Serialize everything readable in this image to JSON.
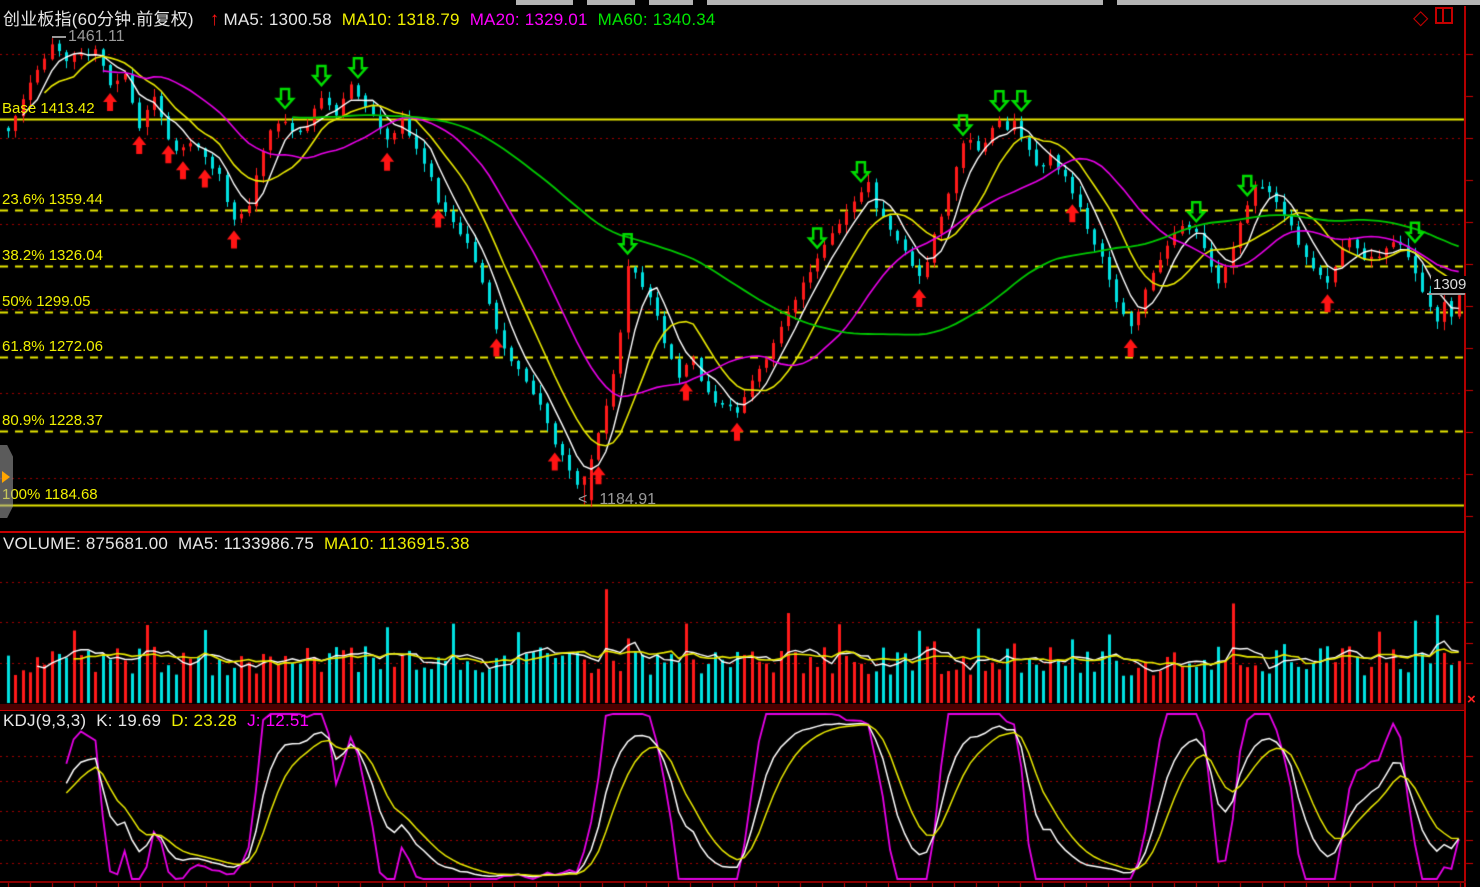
{
  "window": {
    "top_right_icons": [
      {
        "name": "diamond-icon",
        "glyph": "◇"
      },
      {
        "name": "layout-icon",
        "glyph": "split-window"
      }
    ],
    "accent_red": "#c80000",
    "background": "#000000"
  },
  "main_panel": {
    "title": "创业板指(60分钟.前复权)",
    "trend_arrow": "↑",
    "ma5": {
      "label": "MA5:",
      "value": "1300.58",
      "color": "#ffffff"
    },
    "ma10": {
      "label": "MA10:",
      "value": "1318.79",
      "color": "#f0f000"
    },
    "ma20": {
      "label": "MA20:",
      "value": "1329.01",
      "color": "#ff00ff"
    },
    "ma60": {
      "label": "MA60:",
      "value": "1340.34",
      "color": "#00e600"
    },
    "high_label": "1461.11",
    "low_marker": "<",
    "low_label": "1184.91",
    "last_price_label": "1309"
  },
  "volume_panel": {
    "volume": {
      "label": "VOLUME:",
      "value": "875681.00",
      "color": "#e6e6e6"
    },
    "ma5": {
      "label": "MA5:",
      "value": "1133986.75",
      "color": "#ffffff"
    },
    "ma10": {
      "label": "MA10:",
      "value": "1136915.38",
      "color": "#f0f000"
    },
    "close_icon": "×"
  },
  "kdj_panel": {
    "name": "KDJ(9,3,3)",
    "k": {
      "label": "K:",
      "value": "19.69",
      "color": "#ffffff"
    },
    "d": {
      "label": "D:",
      "value": "23.28",
      "color": "#f0f000"
    },
    "j": {
      "label": "J:",
      "value": "12.51",
      "color": "#ff00ff"
    }
  },
  "chart_data": [
    {
      "type": "candlestick",
      "symbol": "创业板指",
      "period": "60分钟",
      "adjust": "前复权",
      "bar_count": 200,
      "y_axis": {
        "high": 1461.11,
        "low": 1184.91
      },
      "ma_values": {
        "MA5": 1300.58,
        "MA10": 1318.79,
        "MA20": 1329.01,
        "MA60": 1340.34
      },
      "last_close": 1309,
      "fib_levels": [
        {
          "label": "Base 1413.42",
          "value": 1413.42,
          "style": "solid"
        },
        {
          "label": "23.6% 1359.44",
          "value": 1359.44,
          "style": "dashed"
        },
        {
          "label": "38.2% 1326.04",
          "value": 1326.04,
          "style": "dashed"
        },
        {
          "label": "50% 1299.05",
          "value": 1299.05,
          "style": "dashed"
        },
        {
          "label": "61.8% 1272.06",
          "value": 1272.06,
          "style": "dashed"
        },
        {
          "label": "80.9% 1228.37",
          "value": 1228.37,
          "style": "dashed"
        },
        {
          "label": "100% 1184.68",
          "value": 1184.68,
          "style": "solid"
        }
      ],
      "price_path": [
        [
          0,
          1405
        ],
        [
          3,
          1433
        ],
        [
          6,
          1459
        ],
        [
          8,
          1448
        ],
        [
          10,
          1452
        ],
        [
          12,
          1454
        ],
        [
          14,
          1432
        ],
        [
          16,
          1440
        ],
        [
          18,
          1408
        ],
        [
          19,
          1420
        ],
        [
          20,
          1427
        ],
        [
          22,
          1403
        ],
        [
          23,
          1394
        ],
        [
          25,
          1400
        ],
        [
          27,
          1391
        ],
        [
          29,
          1380
        ],
        [
          31,
          1352
        ],
        [
          33,
          1362
        ],
        [
          34,
          1380
        ],
        [
          36,
          1408
        ],
        [
          38,
          1412
        ],
        [
          39,
          1404
        ],
        [
          41,
          1409
        ],
        [
          43,
          1427
        ],
        [
          45,
          1417
        ],
        [
          47,
          1432
        ],
        [
          49,
          1421
        ],
        [
          52,
          1400
        ],
        [
          54,
          1412
        ],
        [
          56,
          1397
        ],
        [
          58,
          1377
        ],
        [
          59,
          1364
        ],
        [
          61,
          1351
        ],
        [
          63,
          1341
        ],
        [
          65,
          1316
        ],
        [
          67,
          1288
        ],
        [
          69,
          1270
        ],
        [
          71,
          1258
        ],
        [
          73,
          1246
        ],
        [
          75,
          1222
        ],
        [
          77,
          1206
        ],
        [
          79,
          1188
        ],
        [
          80,
          1212
        ],
        [
          81,
          1226
        ],
        [
          82,
          1242
        ],
        [
          83,
          1263
        ],
        [
          84,
          1285
        ],
        [
          85,
          1328
        ],
        [
          86,
          1322
        ],
        [
          88,
          1308
        ],
        [
          90,
          1282
        ],
        [
          92,
          1262
        ],
        [
          93,
          1268
        ],
        [
          94,
          1272
        ],
        [
          95,
          1258
        ],
        [
          97,
          1247
        ],
        [
          100,
          1240
        ],
        [
          102,
          1257
        ],
        [
          104,
          1272
        ],
        [
          106,
          1290
        ],
        [
          108,
          1308
        ],
        [
          110,
          1322
        ],
        [
          112,
          1338
        ],
        [
          114,
          1352
        ],
        [
          116,
          1366
        ],
        [
          118,
          1375
        ],
        [
          119,
          1362
        ],
        [
          121,
          1348
        ],
        [
          123,
          1334
        ],
        [
          125,
          1320
        ],
        [
          126,
          1330
        ],
        [
          127,
          1344
        ],
        [
          128,
          1356
        ],
        [
          129,
          1370
        ],
        [
          130,
          1384
        ],
        [
          131,
          1397
        ],
        [
          132,
          1401
        ],
        [
          133,
          1394
        ],
        [
          134,
          1399
        ],
        [
          135,
          1406
        ],
        [
          136,
          1414
        ],
        [
          137,
          1407
        ],
        [
          138,
          1411
        ],
        [
          139,
          1404
        ],
        [
          140,
          1394
        ],
        [
          141,
          1384
        ],
        [
          143,
          1390
        ],
        [
          145,
          1380
        ],
        [
          146,
          1371
        ],
        [
          148,
          1350
        ],
        [
          150,
          1330
        ],
        [
          152,
          1306
        ],
        [
          154,
          1289
        ],
        [
          156,
          1311
        ],
        [
          158,
          1330
        ],
        [
          160,
          1344
        ],
        [
          161,
          1351
        ],
        [
          163,
          1347
        ],
        [
          164,
          1337
        ],
        [
          166,
          1317
        ],
        [
          167,
          1327
        ],
        [
          169,
          1351
        ],
        [
          171,
          1372
        ],
        [
          173,
          1370
        ],
        [
          175,
          1357
        ],
        [
          177,
          1340
        ],
        [
          179,
          1326
        ],
        [
          181,
          1317
        ],
        [
          183,
          1338
        ],
        [
          184,
          1343
        ],
        [
          186,
          1329
        ],
        [
          188,
          1331
        ],
        [
          190,
          1342
        ],
        [
          191,
          1337
        ],
        [
          193,
          1322
        ],
        [
          194,
          1310
        ],
        [
          195,
          1300
        ],
        [
          196,
          1293
        ],
        [
          197,
          1304
        ],
        [
          198,
          1297
        ],
        [
          199,
          1309
        ]
      ],
      "buy_signal_bars": [
        14,
        18,
        22,
        24,
        27,
        31,
        52,
        59,
        67,
        75,
        81,
        93,
        100,
        125,
        146,
        154,
        181
      ],
      "sell_signal_bars": [
        38,
        43,
        48,
        85,
        111,
        117,
        131,
        136,
        139,
        163,
        170,
        193
      ],
      "colors": {
        "up": "#ff1a1a",
        "down": "#00e1e1",
        "ma5": "#ffffff",
        "ma10": "#e8e800",
        "ma20": "#e800e8",
        "ma60": "#00c800",
        "buy_arrow": "#ff1414",
        "sell_arrow": "#00dd00"
      }
    },
    {
      "type": "bar",
      "name": "VOLUME",
      "current": 875681.0,
      "ma5": 1133986.75,
      "ma10": 1136915.38,
      "spike_bars": {
        "6": 1.5,
        "9": 1.45,
        "19": 1.6,
        "27": 1.5,
        "35": 1.7,
        "52": 1.45,
        "61": 1.5,
        "70": 1.55,
        "82": 2.3,
        "85": 1.8,
        "93": 1.5,
        "100": 1.55,
        "107": 1.7,
        "114": 1.75,
        "120": 1.5,
        "125": 1.6,
        "127": 1.8,
        "133": 1.6,
        "138": 1.65,
        "140": 1.5,
        "146": 1.45,
        "151": 1.55,
        "160": 1.5,
        "168": 2.25,
        "175": 1.4,
        "181": 1.45,
        "188": 1.4,
        "193": 1.5,
        "196": 1.75
      },
      "colors": {
        "up": "#ff1a1a",
        "down": "#00e1e1",
        "ma5_line": "#ffffff",
        "ma10_line": "#e8e800"
      }
    },
    {
      "type": "line",
      "name": "KDJ(9,3,3)",
      "params": [
        9,
        3,
        3
      ],
      "k": 19.69,
      "d": 23.28,
      "j": 12.51,
      "colors": {
        "k": "#ffffff",
        "d": "#e8e800",
        "j": "#e800e8"
      }
    }
  ]
}
